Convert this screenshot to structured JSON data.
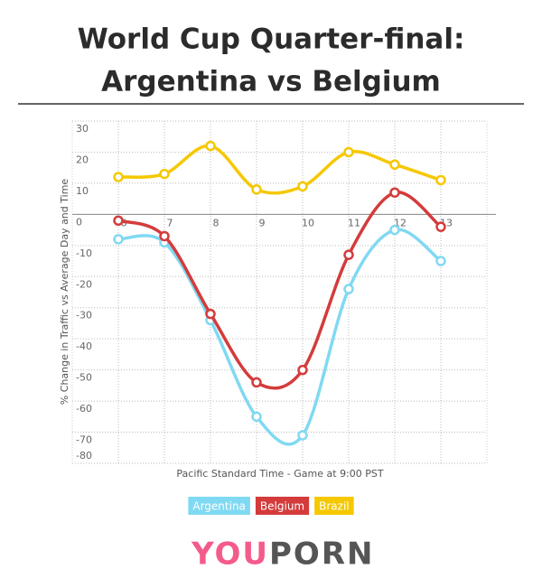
{
  "chart_data": {
    "type": "line",
    "title": [
      "World Cup Quarter-final:",
      "Argentina vs Belgium"
    ],
    "x_label": "Pacific Standard Time - Game at 9:00 PST",
    "y_label": "% Change in Traffic vs Average Day and Time",
    "x": [
      6,
      7,
      8,
      9,
      10,
      11,
      12,
      13
    ],
    "xlim": [
      5,
      14
    ],
    "xticks": [
      6,
      7,
      8,
      9,
      10,
      11,
      12,
      13
    ],
    "ylim": [
      -80,
      30
    ],
    "yticks": [
      30,
      20,
      10,
      0,
      -10,
      -20,
      -30,
      -40,
      -50,
      -60,
      -70,
      -80
    ],
    "grid": true,
    "series": [
      {
        "name": "Argentina",
        "color": "#80d9f2",
        "values": [
          -8,
          -9,
          -34,
          -65,
          -71,
          -24,
          -5,
          -15
        ]
      },
      {
        "name": "Belgium",
        "color": "#d43b3b",
        "values": [
          -2,
          -7,
          -32,
          -54,
          -50,
          -13,
          7,
          -4
        ]
      },
      {
        "name": "Brazil",
        "color": "#f5c800",
        "values": [
          12,
          13,
          22,
          8,
          9,
          20,
          16,
          11
        ]
      }
    ],
    "logo": [
      "YOU",
      "PORN"
    ]
  }
}
